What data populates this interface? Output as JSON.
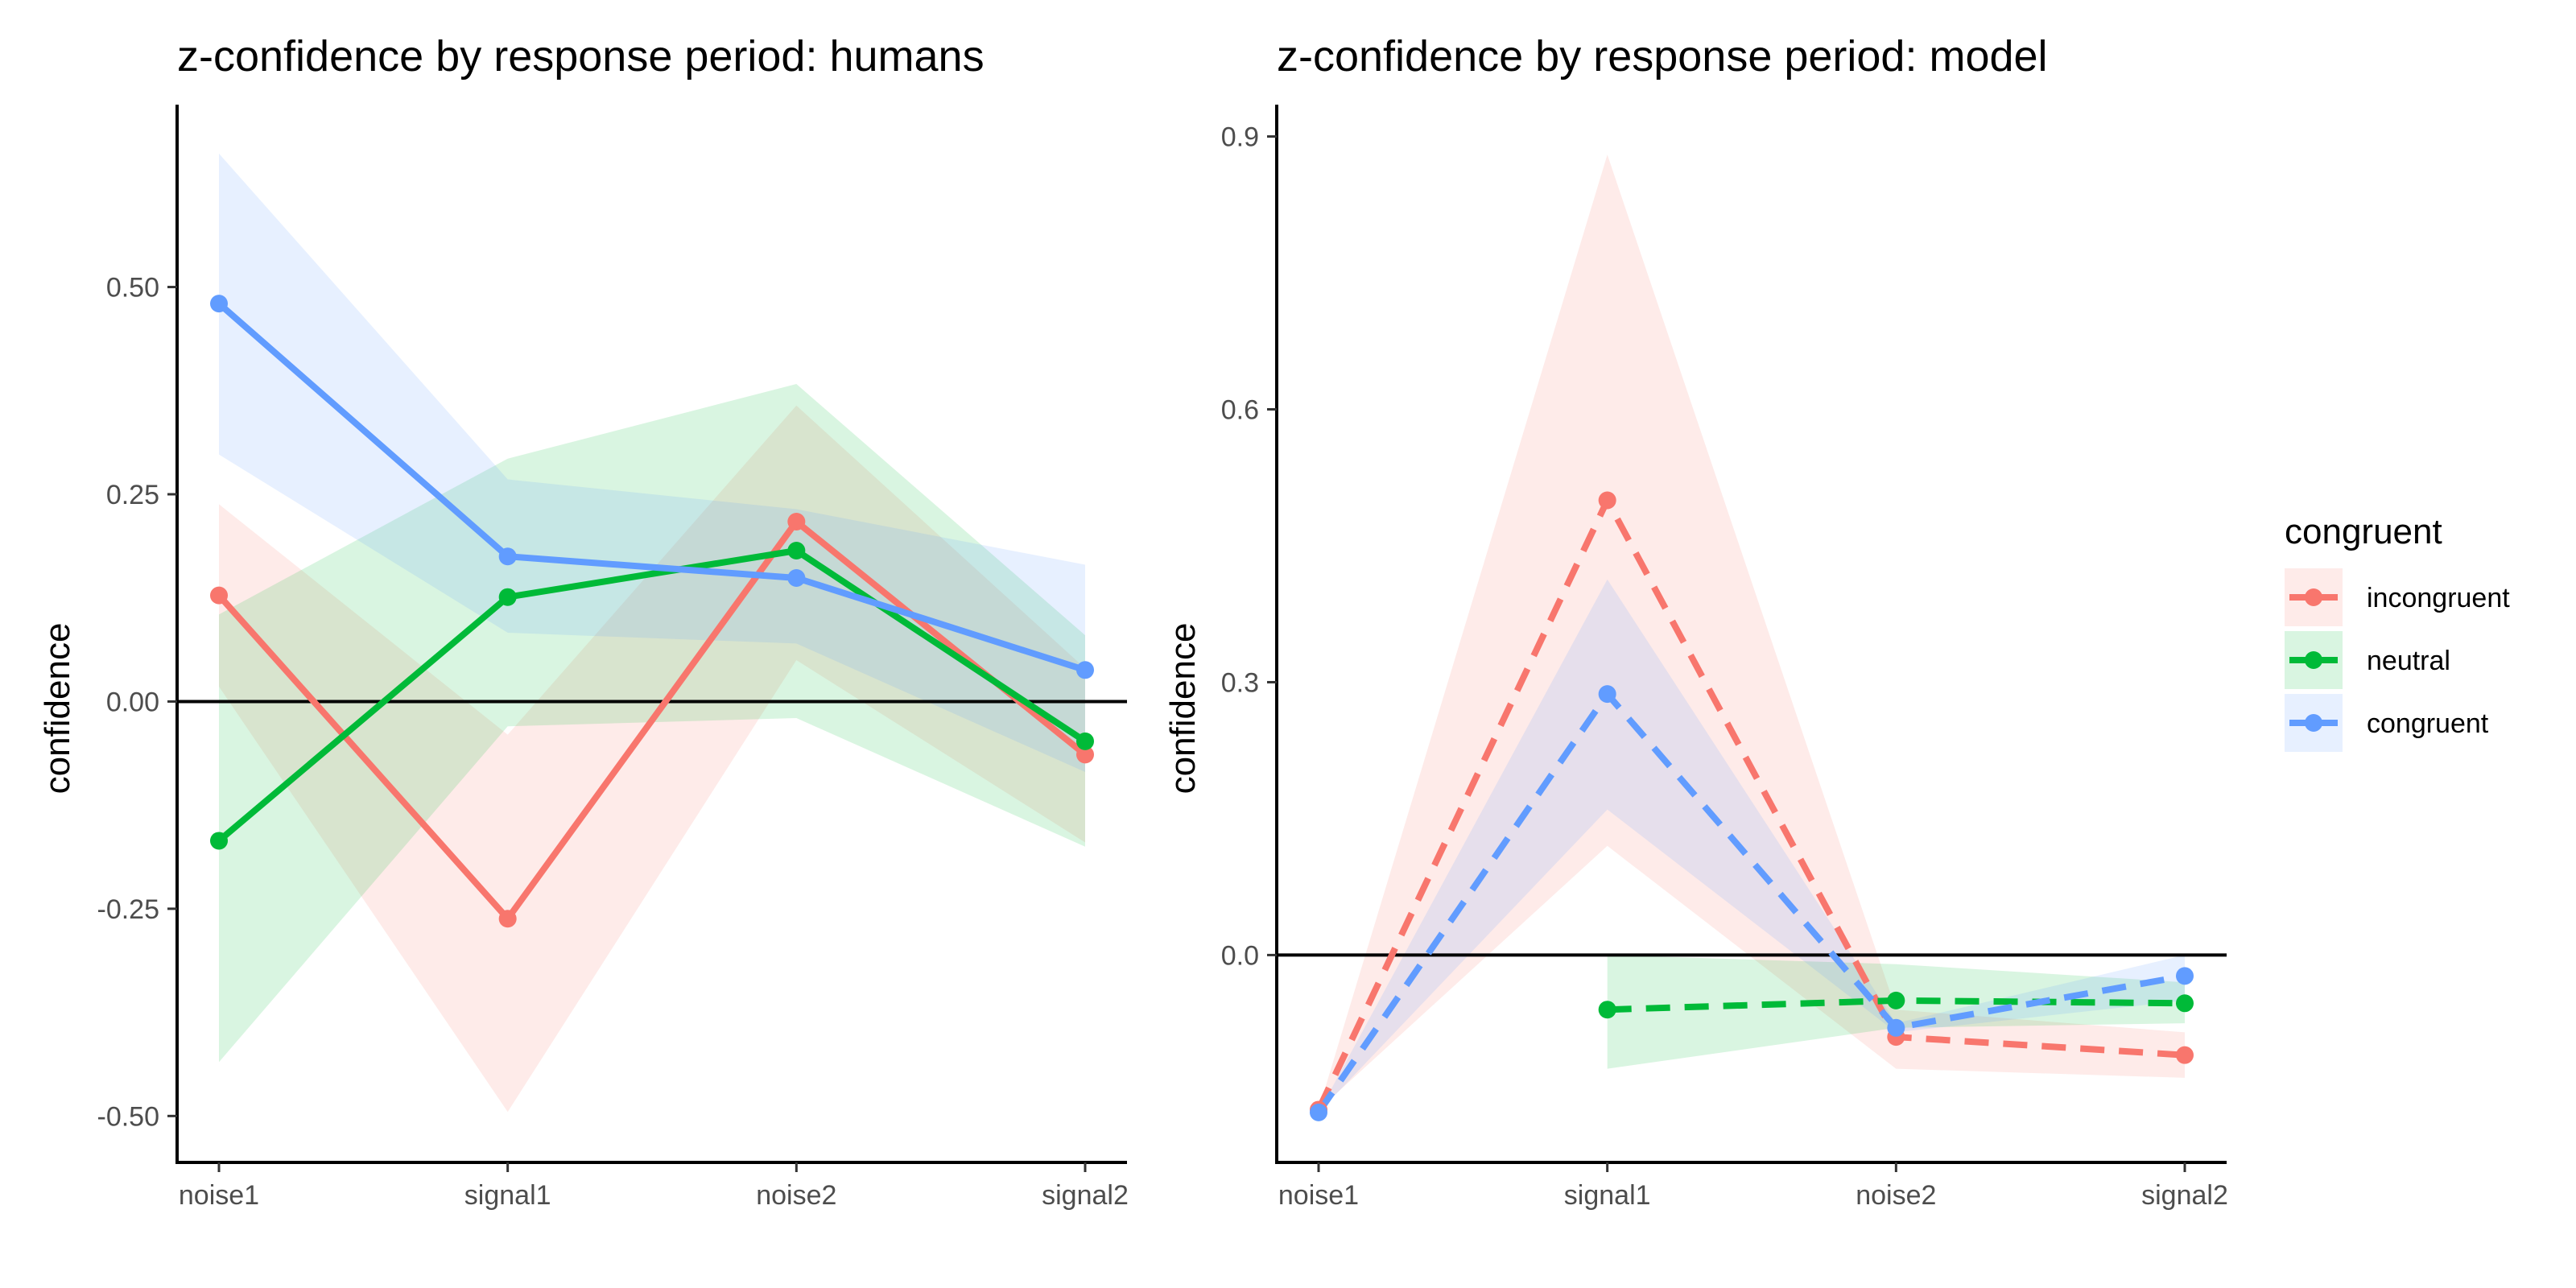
{
  "legend": {
    "title": "congruent",
    "items": [
      {
        "label": "incongruent",
        "color": "#F8766D"
      },
      {
        "label": "neutral",
        "color": "#00BA38"
      },
      {
        "label": "congruent",
        "color": "#619CFF"
      }
    ]
  },
  "chart_data": [
    {
      "type": "line",
      "title": "z-confidence by response period: humans",
      "xlabel": "",
      "ylabel": "confidence",
      "categories": [
        "noise1",
        "signal1",
        "noise2",
        "signal2"
      ],
      "ylim": [
        -0.556,
        0.72
      ],
      "yticks": [
        -0.5,
        -0.25,
        0.0,
        0.25,
        0.5
      ],
      "ytick_labels": [
        "-0.50",
        "-0.25",
        "0.00",
        "0.25",
        "0.50"
      ],
      "hline": 0,
      "line_style": "solid",
      "series": [
        {
          "name": "incongruent",
          "color": "#F8766D",
          "values": [
            0.128,
            -0.262,
            0.217,
            -0.064
          ],
          "lower": [
            0.018,
            -0.495,
            0.05,
            -0.17
          ],
          "upper": [
            0.238,
            -0.04,
            0.357,
            0.04
          ]
        },
        {
          "name": "neutral",
          "color": "#00BA38",
          "values": [
            -0.168,
            0.126,
            0.182,
            -0.048
          ],
          "lower": [
            -0.435,
            -0.03,
            -0.02,
            -0.175
          ],
          "upper": [
            0.105,
            0.293,
            0.383,
            0.08
          ]
        },
        {
          "name": "congruent",
          "color": "#619CFF",
          "values": [
            0.48,
            0.175,
            0.149,
            0.038
          ],
          "lower": [
            0.298,
            0.083,
            0.07,
            -0.085
          ],
          "upper": [
            0.661,
            0.268,
            0.232,
            0.165
          ]
        }
      ]
    },
    {
      "type": "line",
      "title": "z-confidence by response period: model",
      "xlabel": "",
      "ylabel": "confidence",
      "categories": [
        "noise1",
        "signal1",
        "noise2",
        "signal2"
      ],
      "ylim": [
        -0.228,
        0.935
      ],
      "yticks": [
        0.0,
        0.3,
        0.6,
        0.9
      ],
      "ytick_labels": [
        "0.0",
        "0.3",
        "0.6",
        "0.9"
      ],
      "hline": 0,
      "line_style": "dashed",
      "series": [
        {
          "name": "incongruent",
          "color": "#F8766D",
          "values": [
            -0.17,
            0.5,
            -0.09,
            -0.11
          ],
          "lower": [
            -0.17,
            0.12,
            -0.125,
            -0.135
          ],
          "upper": [
            -0.17,
            0.88,
            -0.06,
            -0.085
          ]
        },
        {
          "name": "neutral",
          "color": "#00BA38",
          "values": [
            null,
            -0.06,
            -0.05,
            -0.053
          ],
          "lower": [
            null,
            -0.125,
            -0.08,
            -0.075
          ],
          "upper": [
            null,
            0.0,
            -0.01,
            -0.03
          ]
        },
        {
          "name": "congruent",
          "color": "#619CFF",
          "values": [
            -0.173,
            0.287,
            -0.08,
            -0.023
          ],
          "lower": [
            -0.173,
            0.16,
            -0.085,
            -0.05
          ],
          "upper": [
            -0.173,
            0.413,
            -0.075,
            0.0
          ]
        }
      ]
    }
  ]
}
